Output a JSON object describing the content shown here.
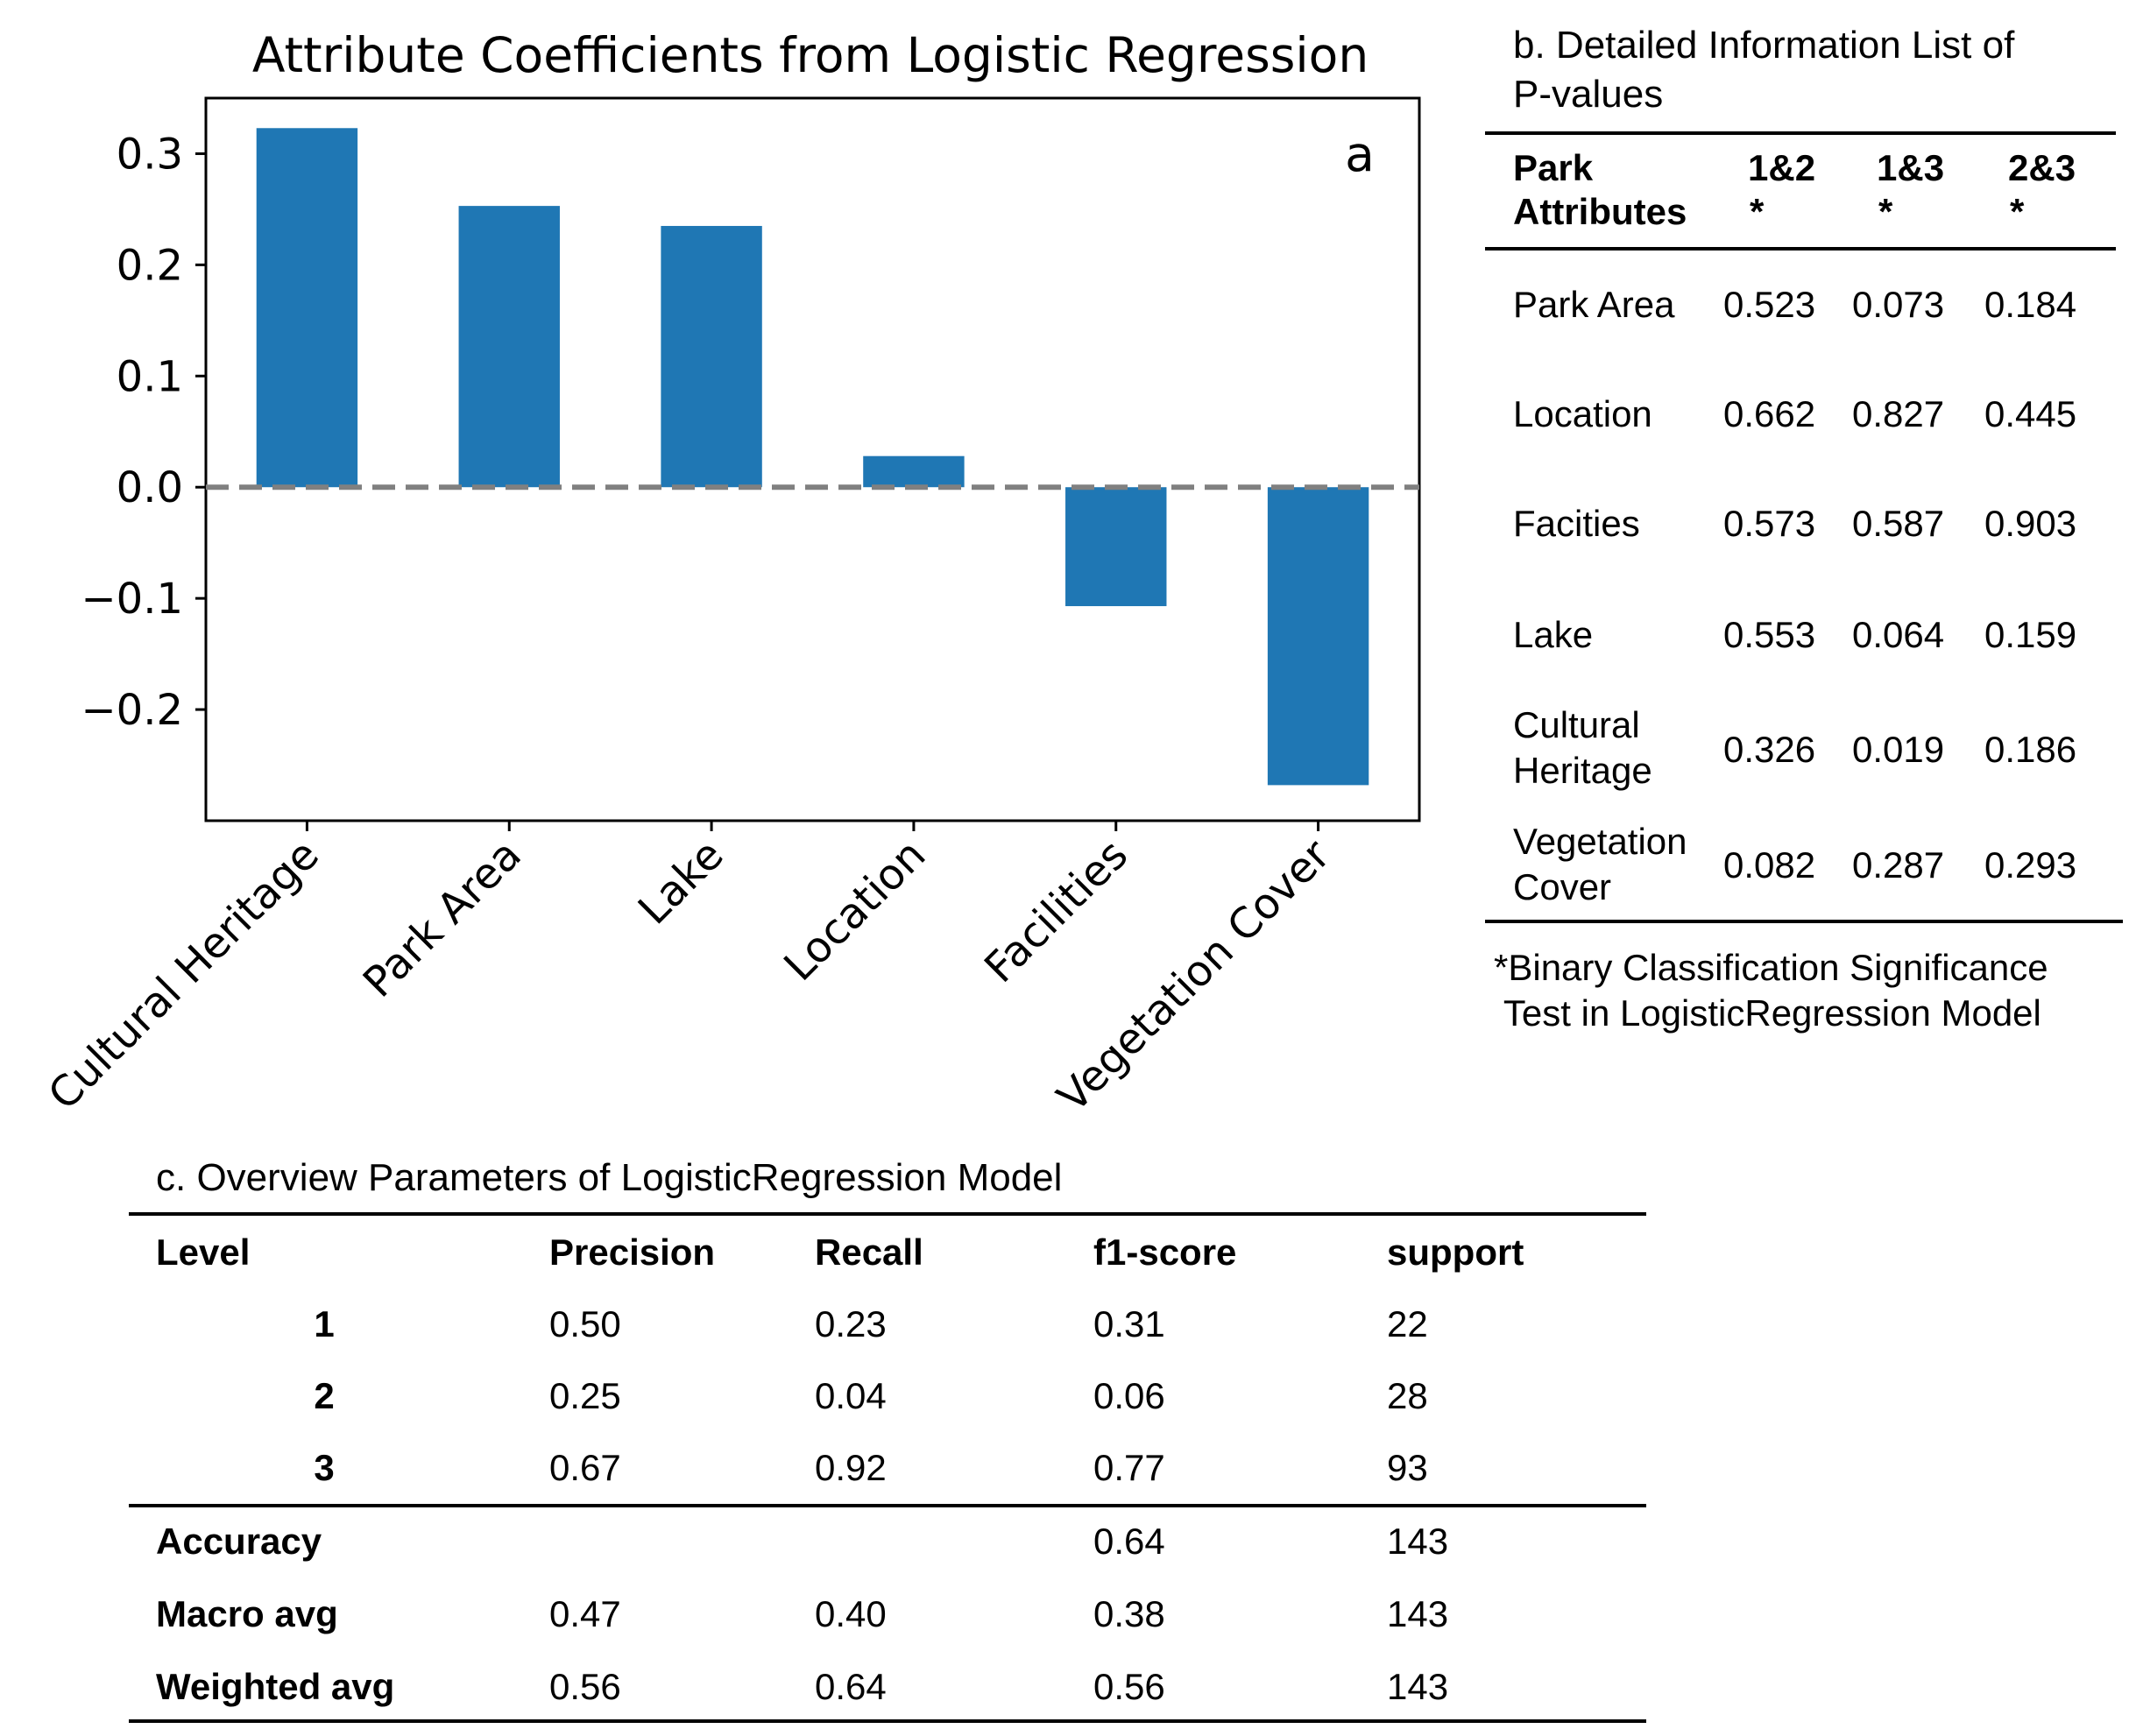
{
  "chart_data": {
    "type": "bar",
    "title": "Attribute Coefficients from Logistic Regression",
    "panel_label": "a",
    "categories": [
      "Cultural Heritage",
      "Park Area",
      "Lake",
      "Location",
      "Facilities",
      "Vegetation Cover"
    ],
    "values": [
      0.323,
      0.253,
      0.235,
      0.028,
      -0.107,
      -0.268
    ],
    "ylim": [
      -0.3,
      0.35
    ],
    "yticks": [
      0.3,
      0.2,
      0.1,
      0.0,
      -0.1,
      -0.2
    ],
    "ytick_labels": [
      "0.3",
      "0.2",
      "0.1",
      "0.0",
      "−0.1",
      "−0.2"
    ],
    "xlabel": "",
    "ylabel": "",
    "bar_color": "#1f77b4",
    "reference_line": 0.0,
    "reference_line_color": "#808080",
    "grid": false
  },
  "pvalues": {
    "title_line1": "b. Detailed Information List of",
    "title_line2": "P-values",
    "header": {
      "attr_line1": "Park",
      "attr_line2": "Attributes",
      "cols": [
        {
          "label": "1&2",
          "mark": "*"
        },
        {
          "label": "1&3",
          "mark": "*"
        },
        {
          "label": "2&3",
          "mark": "*"
        }
      ]
    },
    "rows": [
      {
        "name_line1": "Park Area",
        "name_line2": "",
        "v": [
          "0.523",
          "0.073",
          "0.184"
        ]
      },
      {
        "name_line1": "Location",
        "name_line2": "",
        "v": [
          "0.662",
          "0.827",
          "0.445"
        ]
      },
      {
        "name_line1": "Facities",
        "name_line2": "",
        "v": [
          "0.573",
          "0.587",
          "0.903"
        ]
      },
      {
        "name_line1": "Lake",
        "name_line2": "",
        "v": [
          "0.553",
          "0.064",
          "0.159"
        ]
      },
      {
        "name_line1": "Cultural",
        "name_line2": "Heritage",
        "v": [
          "0.326",
          "0.019",
          "0.186"
        ]
      },
      {
        "name_line1": "Vegetation",
        "name_line2": "Cover",
        "v": [
          "0.082",
          "0.287",
          "0.293"
        ]
      }
    ],
    "note_line1": "*Binary Classification Significance",
    "note_line2": " Test in LogisticRegression Model"
  },
  "overview": {
    "title": "c. Overview Parameters of LogisticRegression Model",
    "headers": [
      "Level",
      "Precision",
      "Recall",
      "f1-score",
      "support"
    ],
    "level_rows": [
      {
        "level": "1",
        "precision": "0.50",
        "recall": "0.23",
        "f1": "0.31",
        "support": "22"
      },
      {
        "level": "2",
        "precision": "0.25",
        "recall": "0.04",
        "f1": "0.06",
        "support": "28"
      },
      {
        "level": "3",
        "precision": "0.67",
        "recall": "0.92",
        "f1": "0.77",
        "support": "93"
      }
    ],
    "summary_rows": [
      {
        "label": "Accuracy",
        "precision": "",
        "recall": "",
        "f1": "0.64",
        "support": "143"
      },
      {
        "label": "Macro avg",
        "precision": "0.47",
        "recall": "0.40",
        "f1": "0.38",
        "support": "143"
      },
      {
        "label": "Weighted avg",
        "precision": "0.56",
        "recall": "0.64",
        "f1": "0.56",
        "support": "143"
      }
    ]
  }
}
